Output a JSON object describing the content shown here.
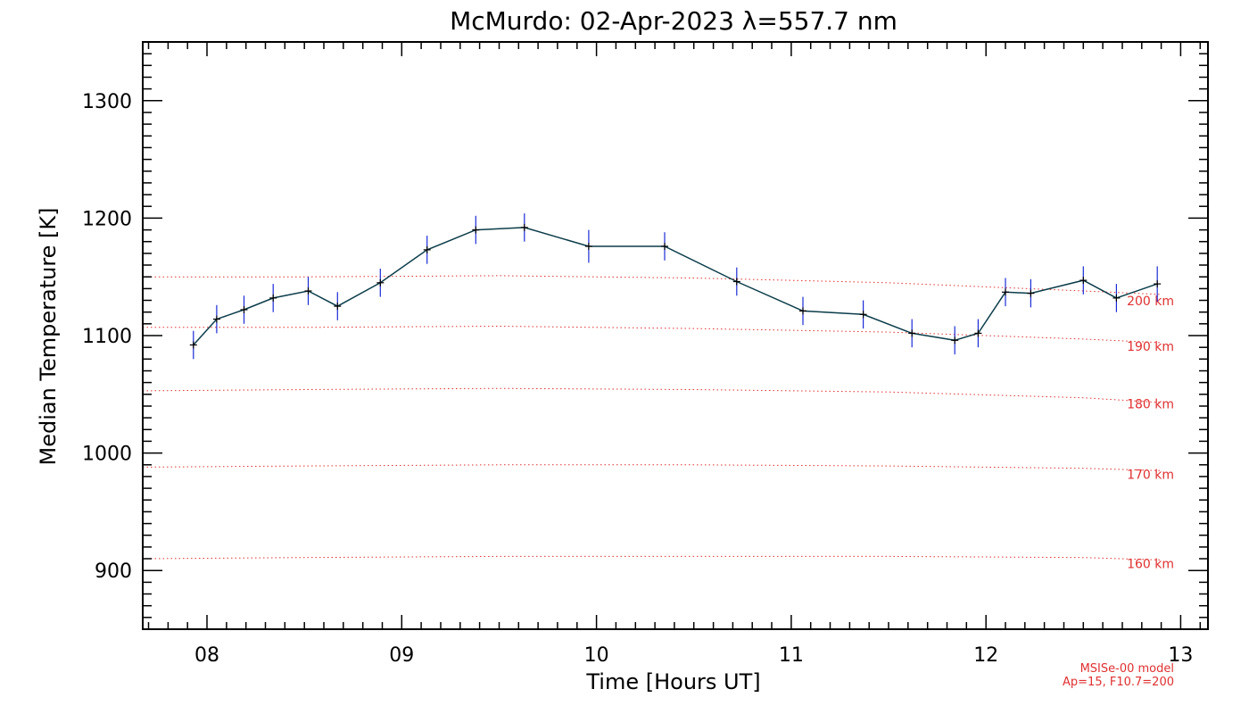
{
  "chart_data": {
    "type": "line",
    "title": "McMurdo: 02-Apr-2023 λ=557.7 nm",
    "xlabel": "Time [Hours UT]",
    "ylabel": "Median Temperature [K]",
    "xlim": [
      7.67,
      13.14
    ],
    "ylim": [
      850,
      1350
    ],
    "x_ticks": [
      {
        "value": 8,
        "label": "08"
      },
      {
        "value": 9,
        "label": "09"
      },
      {
        "value": 10,
        "label": "10"
      },
      {
        "value": 11,
        "label": "11"
      },
      {
        "value": 12,
        "label": "12"
      },
      {
        "value": 13,
        "label": "13"
      }
    ],
    "y_ticks": [
      {
        "value": 900,
        "label": "900"
      },
      {
        "value": 1000,
        "label": "1000"
      },
      {
        "value": 1100,
        "label": "1100"
      },
      {
        "value": 1200,
        "label": "1200"
      },
      {
        "value": 1300,
        "label": "1300"
      }
    ],
    "series": [
      {
        "x": [
          7.93,
          8.05,
          8.19,
          8.34,
          8.52,
          8.67,
          8.89,
          9.13,
          9.38,
          9.63,
          9.96,
          10.35,
          10.72,
          11.06,
          11.37,
          11.62,
          11.84,
          11.96,
          12.1,
          12.23,
          12.5,
          12.67,
          12.88
        ],
        "y": [
          1092,
          1114,
          1122,
          1132,
          1138,
          1125,
          1145,
          1173,
          1190,
          1192,
          1176,
          1176,
          1146,
          1121,
          1118,
          1102,
          1096,
          1102,
          1137,
          1136,
          1147,
          1132,
          1144
        ],
        "err": [
          12,
          12,
          12,
          12,
          12,
          12,
          12,
          12,
          12,
          12,
          14,
          12,
          12,
          12,
          12,
          12,
          12,
          12,
          12,
          12,
          12,
          12,
          15
        ],
        "line_color": "#0b3d4a",
        "errorbar_color": "#1a2bd6",
        "marker_color": "#000000"
      }
    ],
    "model_curves": [
      {
        "label": "200 km",
        "label_value": 1126,
        "x": [
          7.67,
          8.5,
          9.5,
          10.5,
          11.5,
          12.5,
          12.9
        ],
        "y": [
          1150,
          1150,
          1151,
          1149,
          1145,
          1138,
          1135
        ]
      },
      {
        "label": "190 km",
        "label_value": 1087,
        "x": [
          7.67,
          8.5,
          9.5,
          10.5,
          11.5,
          12.5,
          12.9
        ],
        "y": [
          1107,
          1107,
          1108,
          1106,
          1103,
          1097,
          1094
        ]
      },
      {
        "label": "180 km",
        "label_value": 1038,
        "x": [
          7.67,
          8.5,
          9.5,
          10.5,
          11.5,
          12.5,
          12.9
        ],
        "y": [
          1053,
          1054,
          1055,
          1054,
          1052,
          1047,
          1043
        ]
      },
      {
        "label": "170 km",
        "label_value": 978,
        "x": [
          7.67,
          8.5,
          9.5,
          10.5,
          11.5,
          12.5,
          12.9
        ],
        "y": [
          988,
          989,
          990,
          990,
          989,
          987,
          985
        ]
      },
      {
        "label": "160 km",
        "label_value": 902,
        "x": [
          7.67,
          8.5,
          9.5,
          10.5,
          11.5,
          12.5,
          12.9
        ],
        "y": [
          910,
          911,
          912,
          912,
          912,
          911,
          909
        ]
      }
    ],
    "model_color": "#e03030",
    "annotation": [
      "MSISe-00 model",
      "Ap=15, F10.7=200"
    ]
  }
}
